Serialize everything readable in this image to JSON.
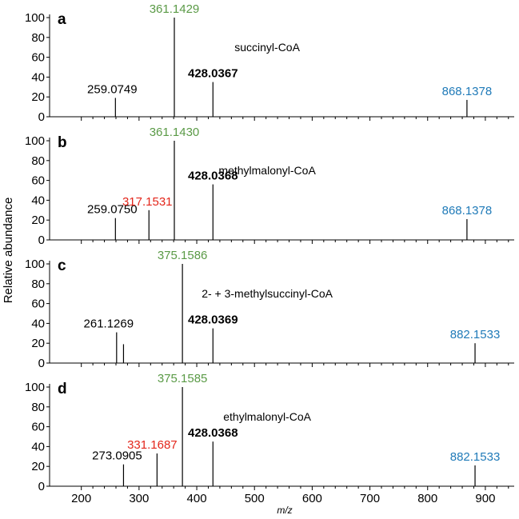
{
  "colors": {
    "ion_green": "#5a9a46",
    "ion_red": "#e3261b",
    "ion_blue": "#1f7ab8",
    "ion_black": "#000000",
    "axis": "#000000"
  },
  "shared_axes": {
    "xlabel": "m/z",
    "ylabel": "Relative abundance",
    "x_ticks": [
      200,
      300,
      400,
      500,
      600,
      700,
      800,
      900
    ],
    "y_ticks": [
      0,
      20,
      40,
      60,
      80,
      100
    ],
    "xlim": [
      145,
      950
    ],
    "ylim": [
      0,
      100
    ]
  },
  "chart_data": [
    {
      "type": "bar",
      "panel_letter": "a",
      "compound_label": "succinyl-CoA",
      "peaks": [
        {
          "mz": 259.0749,
          "value": 19,
          "label": "259.0749",
          "color": "ion_black",
          "bold": false
        },
        {
          "mz": 361.1429,
          "value": 100,
          "label": "361.1429",
          "color": "ion_green",
          "bold": false
        },
        {
          "mz": 428.0367,
          "value": 35,
          "label": "428.0367",
          "color": "ion_black",
          "bold": true
        },
        {
          "mz": 868.1378,
          "value": 17,
          "label": "868.1378",
          "color": "ion_blue",
          "bold": false
        }
      ]
    },
    {
      "type": "bar",
      "panel_letter": "b",
      "compound_label": "methylmalonyl-CoA",
      "peaks": [
        {
          "mz": 259.075,
          "value": 22,
          "label": "259.0750",
          "color": "ion_black",
          "bold": false
        },
        {
          "mz": 317.1531,
          "value": 30,
          "label": "317.1531",
          "color": "ion_red",
          "bold": false
        },
        {
          "mz": 361.143,
          "value": 100,
          "label": "361.1430",
          "color": "ion_green",
          "bold": false
        },
        {
          "mz": 428.0368,
          "value": 56,
          "label": "428.0368",
          "color": "ion_black",
          "bold": true
        },
        {
          "mz": 868.1378,
          "value": 21,
          "label": "868.1378",
          "color": "ion_blue",
          "bold": false
        }
      ]
    },
    {
      "type": "bar",
      "panel_letter": "c",
      "compound_label": "2- + 3-methylsuccinyl-CoA",
      "peaks": [
        {
          "mz": 261.1269,
          "value": 31,
          "label": "261.1269",
          "color": "ion_black",
          "bold": false
        },
        {
          "mz": 273.09,
          "value": 19,
          "label": "",
          "color": "ion_black",
          "bold": false
        },
        {
          "mz": 375.1586,
          "value": 100,
          "label": "375.1586",
          "color": "ion_green",
          "bold": false
        },
        {
          "mz": 428.0369,
          "value": 35,
          "label": "428.0369",
          "color": "ion_black",
          "bold": true
        },
        {
          "mz": 882.1533,
          "value": 20,
          "label": "882.1533",
          "color": "ion_blue",
          "bold": false
        }
      ]
    },
    {
      "type": "bar",
      "panel_letter": "d",
      "compound_label": "ethylmalonyl-CoA",
      "peaks": [
        {
          "mz": 273.0905,
          "value": 22,
          "label": "273.0905",
          "color": "ion_black",
          "bold": false
        },
        {
          "mz": 331.1687,
          "value": 33,
          "label": "331.1687",
          "color": "ion_red",
          "bold": false
        },
        {
          "mz": 375.1585,
          "value": 100,
          "label": "375.1585",
          "color": "ion_green",
          "bold": false
        },
        {
          "mz": 428.0368,
          "value": 45,
          "label": "428.0368",
          "color": "ion_black",
          "bold": true
        },
        {
          "mz": 882.1533,
          "value": 21,
          "label": "882.1533",
          "color": "ion_blue",
          "bold": false
        }
      ]
    }
  ]
}
